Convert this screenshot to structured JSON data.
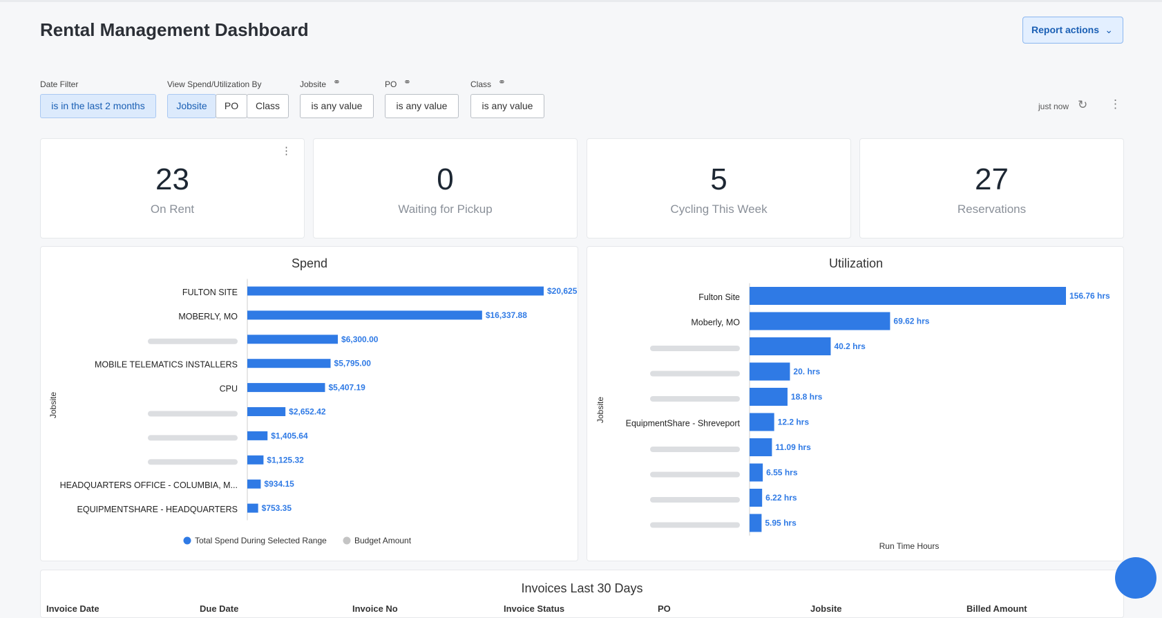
{
  "header": {
    "title": "Rental Management Dashboard",
    "actions": "Report actions"
  },
  "date_filter": {
    "label": "Date Filter",
    "value": "is in the last 2 months"
  },
  "view_by": {
    "label": "View Spend/Utilization By",
    "options": [
      "Jobsite",
      "PO",
      "Class"
    ]
  },
  "filters": [
    {
      "label": "Jobsite",
      "value": "is any value"
    },
    {
      "label": "PO",
      "value": "is any value"
    },
    {
      "label": "Class",
      "value": "is any value"
    }
  ],
  "refresh": "just now",
  "kpis": [
    {
      "value": 23,
      "label": "On Rent"
    },
    {
      "value": 0,
      "label": "Waiting for Pickup"
    },
    {
      "value": 5,
      "label": "Cycling This Week"
    },
    {
      "value": 27,
      "label": "Reservations"
    }
  ],
  "chart_data": [
    {
      "type": "bar",
      "orientation": "horizontal",
      "title": "Spend",
      "y_label": "Jobsite",
      "categories": [
        "FULTON SITE",
        "MOBERLY, MO",
        null,
        "MOBILE TELEMATICS INSTALLERS",
        "CPU",
        null,
        null,
        null,
        "HEADQUARTERS OFFICE - COLUMBIA, M...",
        "EQUIPMENTSHARE - HEADQUARTERS"
      ],
      "series": [
        {
          "name": "Total Spend During Selected Range",
          "color": "#2f7ae5",
          "values": [
            20625,
            16337.88,
            6300,
            5795,
            5407.19,
            2652.42,
            1405.64,
            1125.32,
            934.15,
            753.35
          ],
          "value_labels": [
            "$20,625",
            "$16,337.88",
            "$6,300.00",
            "$5,795.00",
            "$5,407.19",
            "$2,652.42",
            "$1,405.64",
            "$1,125.32",
            "$934.15",
            "$753.35"
          ]
        },
        {
          "name": "Budget Amount",
          "color": "#c4c4c4",
          "values": [
            null,
            null,
            null,
            null,
            null,
            null,
            null,
            null,
            null,
            null
          ]
        }
      ],
      "xlim": [
        0,
        20625
      ],
      "legend": "bottom"
    },
    {
      "type": "bar",
      "orientation": "horizontal",
      "title": "Utilization",
      "y_label": "Jobsite",
      "x_label": "Run Time Hours",
      "categories": [
        "Fulton Site",
        "Moberly, MO",
        null,
        null,
        null,
        "EquipmentShare - Shreveport",
        null,
        null,
        null,
        null
      ],
      "series": [
        {
          "color": "#2f7ae5",
          "values": [
            156.76,
            69.62,
            40.2,
            20,
            18.8,
            12.2,
            11.09,
            6.55,
            6.22,
            5.95
          ],
          "value_labels": [
            "156.76 hrs",
            "69.62 hrs",
            "40.2 hrs",
            "20. hrs",
            "18.8 hrs",
            "12.2 hrs",
            "11.09 hrs",
            "6.55 hrs",
            "6.22 hrs",
            "5.95 hrs"
          ]
        }
      ],
      "xlim": [
        0,
        156.76
      ]
    }
  ],
  "invoices": {
    "title": "Invoices Last 30 Days",
    "columns": [
      "Invoice Date",
      "Due Date",
      "Invoice No",
      "Invoice Status",
      "PO",
      "Jobsite",
      "Billed Amount"
    ]
  }
}
